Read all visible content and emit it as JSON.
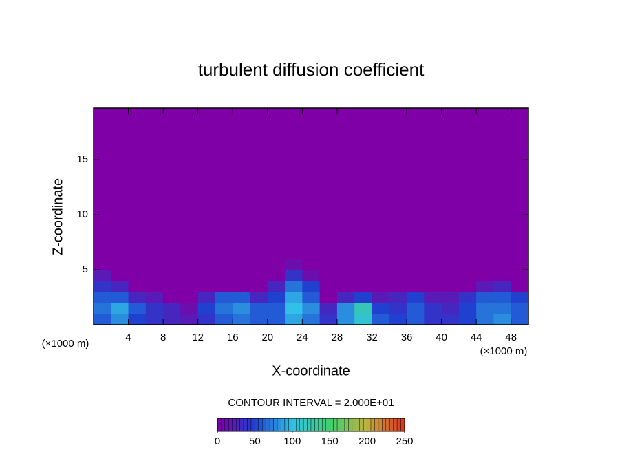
{
  "chart_data": {
    "type": "contour",
    "title": "turbulent diffusion coefficient",
    "x_label": "X-coordinate",
    "y_label": "Z-coordinate",
    "x_unit": "(×1000 m)",
    "y_unit": "(×1000 m)",
    "contour_note": "CONTOUR INTERVAL = 2.000E+01",
    "xlim": [
      0,
      50
    ],
    "ylim": [
      0,
      19.7
    ],
    "xticks": [
      4,
      8,
      12,
      16,
      20,
      24,
      28,
      32,
      36,
      40,
      44,
      48
    ],
    "yticks": [
      5,
      10,
      15
    ],
    "x": [
      1,
      3,
      5,
      7,
      9,
      11,
      13,
      15,
      17,
      19,
      21,
      23,
      25,
      27,
      29,
      31,
      33,
      35,
      37,
      39,
      41,
      43,
      45,
      47,
      49
    ],
    "z": [
      0.5,
      1.5,
      2.5,
      3.5,
      4.5,
      5.5
    ],
    "values": [
      [
        60,
        80,
        50,
        40,
        30,
        20,
        40,
        60,
        70,
        60,
        60,
        90,
        70,
        40,
        80,
        110,
        60,
        50,
        60,
        40,
        40,
        50,
        70,
        80,
        60
      ],
      [
        70,
        90,
        60,
        40,
        30,
        10,
        50,
        70,
        80,
        60,
        60,
        100,
        80,
        30,
        80,
        120,
        50,
        40,
        60,
        40,
        30,
        50,
        70,
        70,
        60
      ],
      [
        60,
        60,
        30,
        20,
        0,
        0,
        30,
        60,
        60,
        30,
        50,
        90,
        60,
        0,
        30,
        50,
        20,
        30,
        50,
        20,
        20,
        40,
        60,
        60,
        50
      ],
      [
        40,
        30,
        0,
        0,
        0,
        0,
        0,
        0,
        0,
        0,
        30,
        70,
        50,
        0,
        0,
        0,
        0,
        0,
        0,
        0,
        0,
        0,
        20,
        30,
        0
      ],
      [
        20,
        0,
        0,
        0,
        0,
        0,
        0,
        0,
        0,
        0,
        0,
        40,
        10,
        0,
        0,
        0,
        0,
        0,
        0,
        0,
        0,
        0,
        0,
        0,
        0
      ],
      [
        0,
        0,
        0,
        0,
        0,
        0,
        0,
        0,
        0,
        0,
        0,
        10,
        0,
        0,
        0,
        0,
        0,
        0,
        0,
        0,
        0,
        0,
        0,
        0,
        0
      ]
    ],
    "clim": [
      0,
      250
    ],
    "colorbar_ticks": [
      0,
      50,
      100,
      150,
      200,
      250
    ],
    "colorscale": [
      "#7f00a6",
      "#2040d0",
      "#30c0e8",
      "#40d070",
      "#c0b040",
      "#e03020"
    ]
  }
}
